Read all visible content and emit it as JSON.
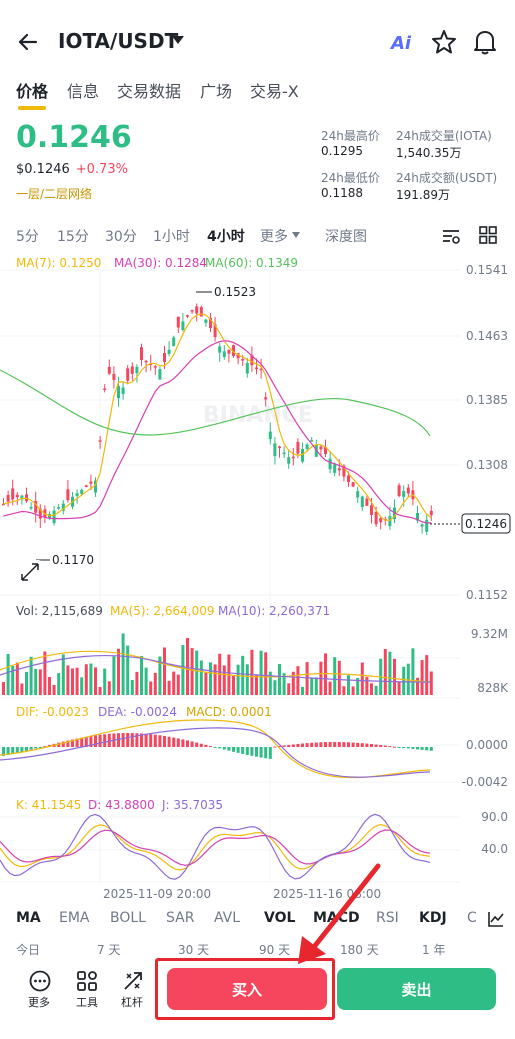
{
  "header": {
    "pair": "IOTA/USDT",
    "ai_label": "Ai"
  },
  "tabs": [
    "价格",
    "信息",
    "交易数据",
    "广场",
    "交易-X"
  ],
  "price": {
    "last": "0.1246",
    "usd": "$0.1246",
    "change": "+0.73%",
    "network": "一层/二层网络",
    "high_label": "24h最高价",
    "high": "0.1295",
    "low_label": "24h最低价",
    "low": "0.1188",
    "vol_base_label": "24h成交量(IOTA)",
    "vol_base": "1,540.35万",
    "vol_quote_label": "24h成交额(USDT)",
    "vol_quote": "191.89万"
  },
  "intervals": [
    "5分",
    "15分",
    "30分",
    "1小时",
    "4小时",
    "更多",
    "深度图"
  ],
  "ma": {
    "ma7": "MA(7): 0.1250",
    "ma30": "MA(30): 0.1284",
    "ma60": "MA(60): 0.1349"
  },
  "chart": {
    "y_ticks": [
      "0.1541",
      "0.1463",
      "0.1385",
      "0.1308",
      "0.1152"
    ],
    "current": "0.1246",
    "high_mark": "0.1523",
    "low_mark": "0.1170",
    "watermark": "BINANCE",
    "vol_legend": {
      "vol": "Vol: 2,115,689",
      "ma5": "MA(5): 2,664,009",
      "ma10": "MA(10): 2,260,371"
    },
    "vol_ticks": [
      "9.32M",
      "828K"
    ],
    "macd_legend": {
      "dif": "DIF: -0.0023",
      "dea": "DEA: -0.0024",
      "macd": "MACD: 0.0001"
    },
    "macd_ticks": [
      "0.0000",
      "-0.0042"
    ],
    "kdj_legend": {
      "k": "K: 41.1545",
      "d": "D: 43.8800",
      "j": "J: 35.7035"
    },
    "kdj_ticks": [
      "90.0",
      "40.0"
    ],
    "dates": [
      "2025-11-09 20:00",
      "2025-11-16 08:00"
    ]
  },
  "indicators": [
    "MA",
    "EMA",
    "BOLL",
    "SAR",
    "AVL",
    "VOL",
    "MACD",
    "RSI",
    "KDJ",
    "C"
  ],
  "ranges": [
    "今日",
    "7 天",
    "30 天",
    "90 天",
    "180 天",
    "1 年"
  ],
  "bottom": {
    "more": "更多",
    "tools": "工具",
    "leverage": "杠杆",
    "buy": "买入",
    "sell": "卖出"
  },
  "colors": {
    "up": "#2ebd85",
    "down": "#f6465d",
    "ma7": "#f0b90b",
    "ma30": "#d63fb4",
    "ma60": "#55c35a",
    "accent": "#f0b90b"
  }
}
